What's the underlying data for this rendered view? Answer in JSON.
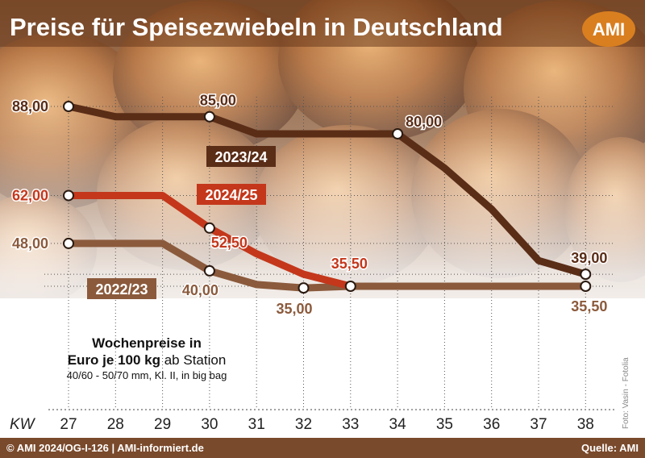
{
  "header": {
    "title": "Preise für Speisezwiebeln in Deutschland",
    "logo": "AMI"
  },
  "colors": {
    "s2324": "#5a2d17",
    "s2425": "#c4371b",
    "s2223": "#8b5a3c",
    "footer_bg": "#7a4a2c",
    "logo_bg": "#d97f1f"
  },
  "chart_data": {
    "type": "line",
    "x_title": "KW",
    "x": [
      27,
      28,
      29,
      30,
      31,
      32,
      33,
      34,
      35,
      36,
      37,
      38
    ],
    "ylim": [
      20,
      100
    ],
    "grid": true,
    "series": [
      {
        "name": "2023/24",
        "values": [
          88,
          85,
          85,
          85,
          80,
          80,
          80,
          80,
          70,
          58,
          43,
          39
        ],
        "labels": [
          {
            "i": 0,
            "text": "88,00"
          },
          {
            "i": 3,
            "text": "85,00"
          },
          {
            "i": 7,
            "text": "80,00"
          },
          {
            "i": 11,
            "text": "39,00"
          }
        ]
      },
      {
        "name": "2024/25",
        "values": [
          62,
          62,
          62,
          52.5,
          45,
          39,
          35.5,
          null,
          null,
          null,
          null,
          null
        ],
        "labels": [
          {
            "i": 0,
            "text": "62,00"
          },
          {
            "i": 3,
            "text": "52,50"
          },
          {
            "i": 6,
            "text": "35,50"
          }
        ]
      },
      {
        "name": "2022/23",
        "values": [
          48,
          48,
          48,
          40,
          36,
          35,
          35.5,
          35.5,
          35.5,
          35.5,
          35.5,
          35.5
        ],
        "labels": [
          {
            "i": 0,
            "text": "48,00"
          },
          {
            "i": 3,
            "text": "40,00"
          },
          {
            "i": 5,
            "text": "35,00"
          },
          {
            "i": 11,
            "text": "35,50"
          }
        ]
      }
    ]
  },
  "note": {
    "line1": "Wochenpreise in",
    "line2_bold": "Euro je 100 kg",
    "line2_rest": " ab Station",
    "line3": "40/60 - 50/70 mm, Kl. II, in big bag"
  },
  "photo_credit": "Foto: Vasin - Fotolia",
  "footer": {
    "left": "© AMI 2024/OG-I-126 | AMI-informiert.de",
    "right": "Quelle: AMI"
  }
}
